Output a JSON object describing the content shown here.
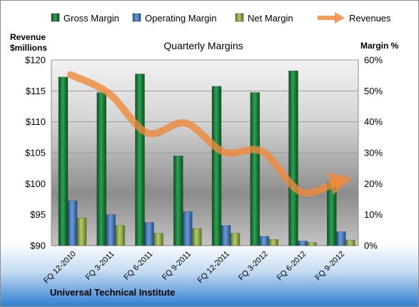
{
  "chart_data": {
    "type": "bar",
    "title": "Quarterly Margins",
    "footer": "Universal Technical Institute",
    "left_axis": {
      "label_line1": "Revenue",
      "label_line2": "$millions",
      "ylim": [
        90,
        120
      ],
      "ticks": [
        "$90",
        "$95",
        "$100",
        "$105",
        "$110",
        "$115",
        "$120"
      ]
    },
    "right_axis": {
      "label": "Margin %",
      "ylim": [
        0,
        60
      ],
      "ticks": [
        "0%",
        "10%",
        "20%",
        "30%",
        "40%",
        "50%",
        "60%"
      ]
    },
    "categories": [
      "FQ 12-2010",
      "FQ 3-2011",
      "FQ 6-2011",
      "FQ 9-2011",
      "FQ 12-2011",
      "FQ 3-2012",
      "FQ 6-2012",
      "FQ 9-2012"
    ],
    "series": [
      {
        "name": "Gross Margin",
        "type": "bar",
        "axis": "right",
        "color": "#1f7a3a",
        "values": [
          54.5,
          49.5,
          55.5,
          29,
          51.5,
          49.5,
          56.5,
          20.5
        ]
      },
      {
        "name": "Operating Margin",
        "type": "bar",
        "axis": "right",
        "color": "#3c6eae",
        "values": [
          14.5,
          10,
          7.5,
          11,
          6.5,
          3,
          1.5,
          4.5
        ]
      },
      {
        "name": "Net Margin",
        "type": "bar",
        "axis": "right",
        "color": "#8aa53c",
        "values": [
          9,
          6.5,
          4,
          5.5,
          4,
          2,
          1,
          1.8
        ]
      },
      {
        "name": "Revenues",
        "type": "line",
        "axis": "left",
        "color": "#f08a3c",
        "values": [
          117.6,
          114.6,
          108.2,
          109.8,
          105.1,
          105.2,
          98.7,
          100.4
        ]
      }
    ],
    "grid": true,
    "legend_position": "top"
  }
}
